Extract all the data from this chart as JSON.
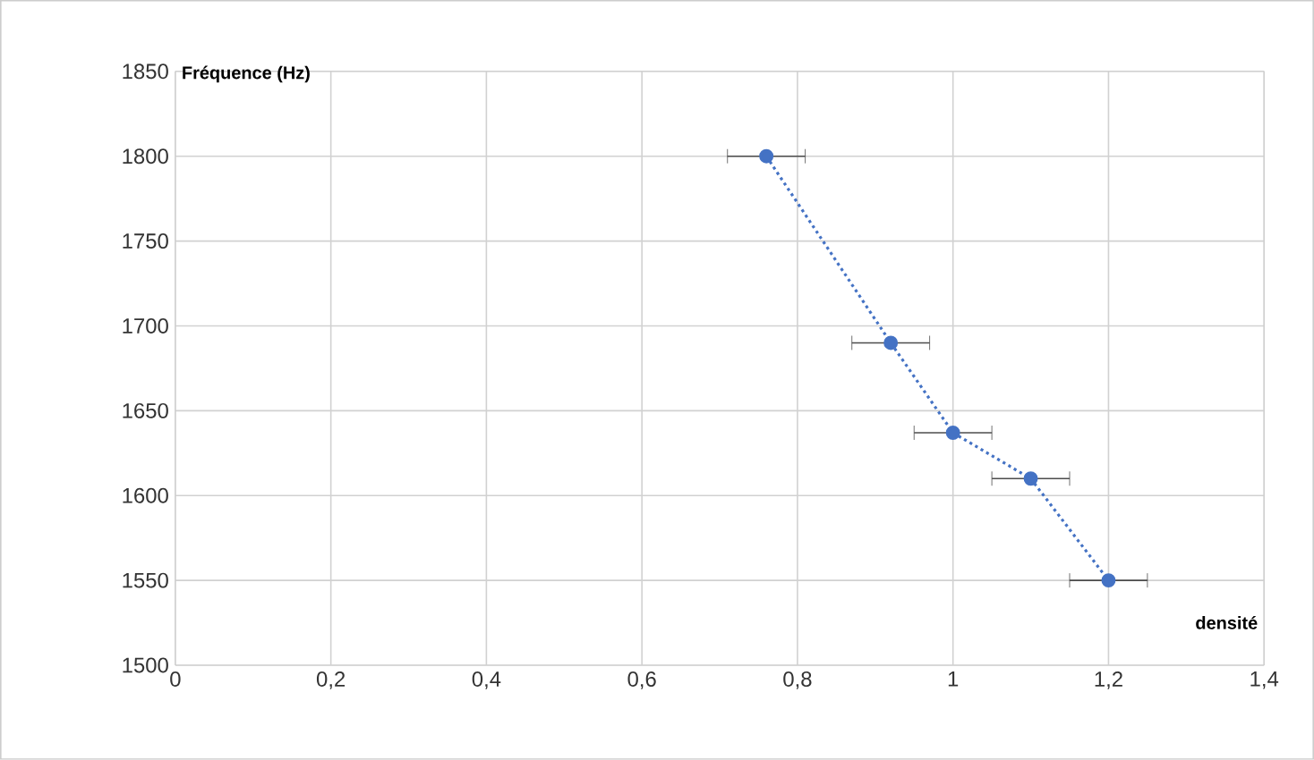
{
  "chart_data": {
    "type": "line",
    "xlabel": "densité",
    "ylabel": "Fréquence (Hz)",
    "x": [
      0.76,
      0.92,
      1.0,
      1.1,
      1.2
    ],
    "series": [
      {
        "color": "#4472c4",
        "values": [
          1800,
          1690,
          1637,
          1610,
          1550
        ],
        "xerrors": [
          0.05,
          0.05,
          0.05,
          0.05,
          0.05
        ],
        "line_style": "dotted",
        "marker": "circle"
      }
    ],
    "xlim": [
      0,
      1.4
    ],
    "xticks": [
      0,
      {
        "value": 0.2,
        "label": "0,2"
      },
      {
        "value": 0.4,
        "label": "0,4"
      },
      {
        "value": 0.6,
        "label": "0,6"
      },
      {
        "value": 0.8,
        "label": "0,8"
      },
      1,
      {
        "value": 1.2,
        "label": "1,2"
      },
      {
        "value": 1.4,
        "label": "1,4"
      }
    ],
    "ylim": [
      1500,
      1850
    ],
    "yticks": [
      1500,
      1550,
      1600,
      1650,
      1700,
      1750,
      1800,
      1850
    ],
    "grid": true
  }
}
